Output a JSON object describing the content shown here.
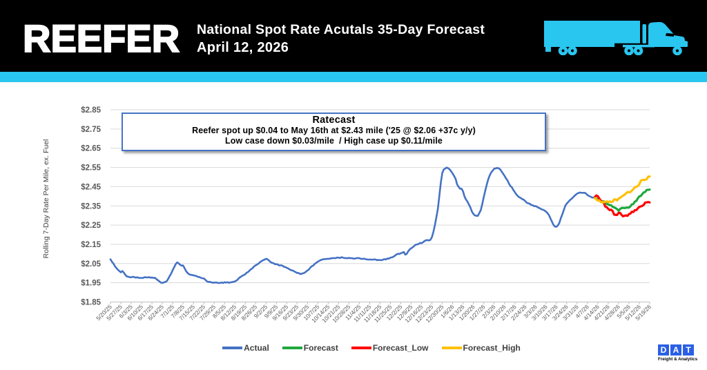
{
  "header": {
    "logo": "REEFER",
    "title_line1": "National Spot Rate Acutals 35-Day Forecast",
    "title_line2": "April 12, 2026",
    "accent_color": "#29C6F0",
    "truck_icon": "semi-truck-silhouette"
  },
  "annotation": {
    "title": "Ratecast",
    "line1": "Reefer spot up $0.04 to May 16th at $2.43 mile ('25 @ $2.06 +37c y/y)",
    "line2": "Low case down $0.03/mile  / High case up $0.11/mile",
    "border_color": "#4472C4"
  },
  "chart_data": {
    "type": "line",
    "ylabel": "Rolling 7-Day Rate Per Mile, ex. Fuel",
    "ylim": [
      1.85,
      2.85
    ],
    "ytick_step": 0.1,
    "ytick_labels": [
      "$1.85",
      "$1.95",
      "$2.05",
      "$2.15",
      "$2.25",
      "$2.35",
      "$2.45",
      "$2.55",
      "$2.65",
      "$2.75",
      "$2.85"
    ],
    "grid": true,
    "legend_position": "bottom",
    "categories": [
      "5/20/25",
      "5/27/25",
      "6/3/25",
      "6/10/25",
      "6/17/25",
      "6/24/25",
      "7/1/25",
      "7/8/25",
      "7/15/25",
      "7/22/25",
      "7/29/25",
      "8/5/25",
      "8/12/25",
      "8/19/25",
      "8/26/25",
      "9/2/25",
      "9/9/25",
      "9/16/25",
      "9/23/25",
      "9/30/25",
      "10/7/25",
      "10/14/25",
      "10/21/25",
      "10/28/25",
      "11/4/25",
      "11/11/25",
      "11/18/25",
      "11/25/25",
      "12/2/25",
      "12/9/25",
      "12/16/25",
      "12/23/25",
      "12/30/25",
      "1/6/26",
      "1/13/26",
      "1/20/26",
      "1/27/26",
      "2/3/26",
      "2/10/26",
      "2/17/26",
      "2/24/26",
      "3/3/26",
      "3/10/26",
      "3/17/26",
      "3/24/26",
      "3/31/26",
      "4/7/26",
      "4/14/26",
      "4/21/26",
      "4/28/26",
      "5/5/26",
      "5/12/26",
      "5/19/26"
    ],
    "days_per_category": 7,
    "series": [
      {
        "name": "Actual",
        "color": "#4472C4",
        "x_start_day": 0,
        "values": [
          2.072,
          2.0593,
          2.0499,
          2.0363,
          2.0266,
          2.0181,
          2.011,
          2.0042,
          2.0113,
          2.003,
          1.9918,
          1.9828,
          1.9817,
          1.9788,
          1.9786,
          1.9812,
          1.9799,
          1.9767,
          1.9788,
          1.9758,
          1.9753,
          1.9752,
          1.9754,
          1.9788,
          1.9787,
          1.9775,
          1.9791,
          1.9769,
          1.9773,
          1.9756,
          1.976,
          1.9692,
          1.9634,
          1.9576,
          1.9512,
          1.9489,
          1.9522,
          1.9543,
          1.9582,
          1.9708,
          1.9858,
          1.9984,
          2.0159,
          2.0308,
          2.0465,
          2.0559,
          2.0517,
          2.0435,
          2.0395,
          2.04,
          2.0266,
          2.0107,
          2.0017,
          1.9948,
          1.9917,
          1.9906,
          1.9889,
          1.9868,
          1.9851,
          1.9807,
          1.9797,
          1.9763,
          1.9733,
          1.973,
          1.9661,
          1.9582,
          1.9544,
          1.9551,
          1.9524,
          1.9504,
          1.9513,
          1.9514,
          1.9511,
          1.9485,
          1.9496,
          1.9514,
          1.9488,
          1.9529,
          1.9508,
          1.9532,
          1.9497,
          1.9522,
          1.9534,
          1.9551,
          1.9571,
          1.961,
          1.9678,
          1.9762,
          1.981,
          1.9868,
          1.9901,
          1.9946,
          2.0026,
          2.0066,
          2.0149,
          2.0213,
          2.0267,
          2.0352,
          2.041,
          2.045,
          2.0504,
          2.0578,
          2.0625,
          2.0675,
          2.0706,
          2.0747,
          2.0723,
          2.0658,
          2.0579,
          2.0541,
          2.0521,
          2.0467,
          2.0469,
          2.0447,
          2.0398,
          2.0411,
          2.0395,
          2.0338,
          2.0318,
          2.0278,
          2.0245,
          2.0193,
          2.0152,
          2.014,
          2.009,
          2.0057,
          2.0009,
          2.001,
          1.9955,
          1.9969,
          1.9995,
          2.0016,
          2.0081,
          2.0145,
          2.0192,
          2.0299,
          2.0365,
          2.0402,
          2.049,
          2.0546,
          2.06,
          2.0641,
          2.0687,
          2.0706,
          2.0731,
          2.0734,
          2.0742,
          2.0747,
          2.0752,
          2.0777,
          2.0777,
          2.0789,
          2.0776,
          2.0816,
          2.0805,
          2.079,
          2.0831,
          2.0809,
          2.0783,
          2.0788,
          2.0772,
          2.08,
          2.0774,
          2.0784,
          2.0758,
          2.0756,
          2.0782,
          2.0787,
          2.0784,
          2.0746,
          2.0741,
          2.0755,
          2.0733,
          2.0718,
          2.0704,
          2.0713,
          2.0706,
          2.0704,
          2.0717,
          2.0712,
          2.0675,
          2.0688,
          2.0679,
          2.0677,
          2.0704,
          2.0732,
          2.0712,
          2.0764,
          2.0759,
          2.0806,
          2.0821,
          2.0853,
          2.0907,
          2.0972,
          2.1006,
          2.1,
          2.1032,
          2.1067,
          2.1101,
          2.0964,
          2.1004,
          2.114,
          2.1236,
          2.1296,
          2.1343,
          2.1417,
          2.148,
          2.1493,
          2.1519,
          2.1572,
          2.1562,
          2.1608,
          2.1672,
          2.1711,
          2.172,
          2.1701,
          2.1735,
          2.1876,
          2.215,
          2.25,
          2.2911,
          2.3337,
          2.4015,
          2.471,
          2.5212,
          2.5399,
          2.5441,
          2.5494,
          2.5455,
          2.5397,
          2.5293,
          2.5183,
          2.5046,
          2.4905,
          2.4616,
          2.4495,
          2.4392,
          2.4392,
          2.4253,
          2.3985,
          2.3832,
          2.3718,
          2.3564,
          2.3411,
          2.3202,
          2.3079,
          2.3003,
          2.2987,
          2.2979,
          2.3131,
          2.3284,
          2.3604,
          2.3963,
          2.4291,
          2.4601,
          2.4881,
          2.5084,
          2.5238,
          2.5332,
          2.5434,
          2.5445,
          2.5476,
          2.5451,
          2.5406,
          2.5293,
          2.518,
          2.5064,
          2.493,
          2.4827,
          2.4658,
          2.453,
          2.4462,
          2.4321,
          2.4213,
          2.409,
          2.4012,
          2.3945,
          2.3911,
          2.385,
          2.382,
          2.3746,
          2.3665,
          2.3635,
          2.3613,
          2.3549,
          2.3536,
          2.3485,
          2.3489,
          2.3451,
          2.3401,
          2.3374,
          2.3319,
          2.3299,
          2.326,
          2.3202,
          2.3124,
          2.302,
          2.2845,
          2.2681,
          2.2515,
          2.2423,
          2.2413,
          2.2483,
          2.2611,
          2.2859,
          2.3057,
          2.3273,
          2.35,
          2.3619,
          2.3702,
          2.379,
          2.3851,
          2.3926,
          2.4003,
          2.4075,
          2.4137,
          2.4173,
          2.4194,
          2.4181,
          2.4178,
          2.4183,
          2.4144,
          2.4059,
          2.4015,
          2.3987,
          2.3935,
          2.3935,
          2.392
        ]
      },
      {
        "name": "Forecast",
        "color": "#1FA83C",
        "x_start_day": 327,
        "values": [
          2.392,
          2.3856,
          2.387,
          2.3805,
          2.3756,
          2.3725,
          2.3735,
          2.3649,
          2.3605,
          2.3576,
          2.3541,
          2.3534,
          2.3447,
          2.3425,
          2.3381,
          2.3334,
          2.3247,
          2.3337,
          2.3388,
          2.34,
          2.3386,
          2.3408,
          2.3413,
          2.3411,
          2.348,
          2.3581,
          2.3604,
          2.3723,
          2.3761,
          2.3891,
          2.3996,
          2.4015,
          2.4115,
          2.4201,
          2.4229,
          2.4333,
          2.4334,
          2.435
        ]
      },
      {
        "name": "Forecast_Low",
        "color": "#FF0000",
        "x_start_day": 327,
        "values": [
          2.396,
          2.4043,
          2.4,
          2.3879,
          2.3771,
          2.3716,
          2.3651,
          2.3468,
          2.3429,
          2.3348,
          2.328,
          2.3301,
          2.3233,
          2.3045,
          2.3032,
          2.303,
          2.3138,
          2.3138,
          2.3035,
          2.2957,
          2.2987,
          2.3004,
          2.2982,
          2.3069,
          2.3102,
          2.3197,
          2.3183,
          2.3278,
          2.3279,
          2.3375,
          2.3447,
          2.3475,
          2.3502,
          2.3554,
          2.3677,
          2.3682,
          2.3701,
          2.368
        ]
      },
      {
        "name": "Forecast_High",
        "color": "#FFC000",
        "x_start_day": 327,
        "values": [
          2.39,
          2.383,
          2.3775,
          2.3783,
          2.3698,
          2.3705,
          2.3683,
          2.3712,
          2.3737,
          2.3693,
          2.3732,
          2.3706,
          2.3715,
          2.3836,
          2.3838,
          2.3782,
          2.3874,
          2.3923,
          2.3978,
          2.4031,
          2.4077,
          2.4151,
          2.4218,
          2.4207,
          2.422,
          2.4297,
          2.4371,
          2.4477,
          2.4489,
          2.4535,
          2.4627,
          2.4811,
          2.4848,
          2.485,
          2.4852,
          2.4891,
          2.5017,
          2.503
        ]
      }
    ]
  },
  "footer_logo": {
    "letters": [
      "D",
      "A",
      "T"
    ],
    "tagline": "Freight & Analytics",
    "square_color": "#2B5FE5"
  }
}
